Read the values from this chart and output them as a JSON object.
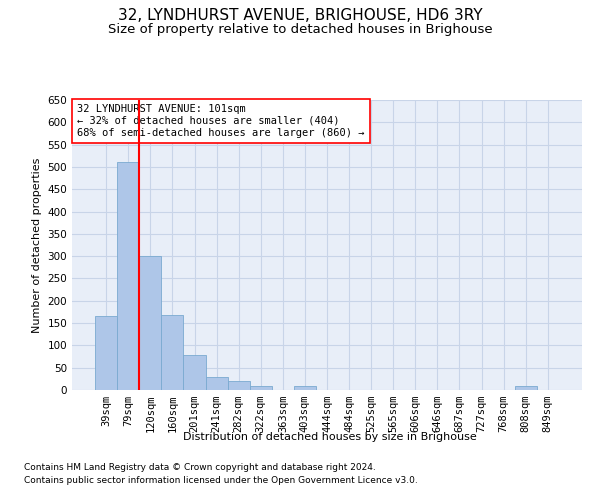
{
  "title": "32, LYNDHURST AVENUE, BRIGHOUSE, HD6 3RY",
  "subtitle": "Size of property relative to detached houses in Brighouse",
  "xlabel": "Distribution of detached houses by size in Brighouse",
  "ylabel": "Number of detached properties",
  "categories": [
    "39sqm",
    "79sqm",
    "120sqm",
    "160sqm",
    "201sqm",
    "241sqm",
    "282sqm",
    "322sqm",
    "363sqm",
    "403sqm",
    "444sqm",
    "484sqm",
    "525sqm",
    "565sqm",
    "606sqm",
    "646sqm",
    "687sqm",
    "727sqm",
    "768sqm",
    "808sqm",
    "849sqm"
  ],
  "values": [
    165,
    510,
    300,
    168,
    78,
    30,
    20,
    8,
    0,
    8,
    0,
    0,
    0,
    0,
    0,
    0,
    0,
    0,
    0,
    8,
    0
  ],
  "bar_color": "#aec6e8",
  "bar_edge_color": "#7aaad0",
  "ylim": [
    0,
    650
  ],
  "yticks": [
    0,
    50,
    100,
    150,
    200,
    250,
    300,
    350,
    400,
    450,
    500,
    550,
    600,
    650
  ],
  "red_line_x": 1.5,
  "annotation_box_text": "32 LYNDHURST AVENUE: 101sqm\n← 32% of detached houses are smaller (404)\n68% of semi-detached houses are larger (860) →",
  "footnote1": "Contains HM Land Registry data © Crown copyright and database right 2024.",
  "footnote2": "Contains public sector information licensed under the Open Government Licence v3.0.",
  "background_color": "#ffffff",
  "plot_bg_color": "#e8eef8",
  "grid_color": "#c8d4e8",
  "title_fontsize": 11,
  "subtitle_fontsize": 9.5,
  "axis_label_fontsize": 8,
  "tick_fontsize": 7.5,
  "annotation_fontsize": 7.5,
  "footnote_fontsize": 6.5
}
